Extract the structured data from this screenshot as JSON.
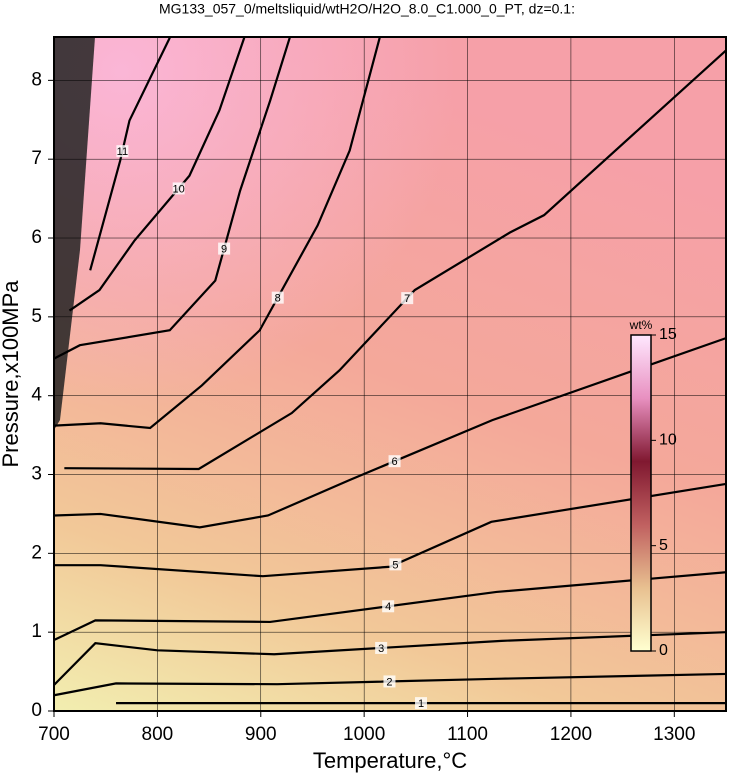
{
  "chart_data": {
    "type": "contour",
    "title": "MG133_057_0/meltsliquid/wtH2O/H2O_8.0_C1.000_0_PT, dz=0.1:",
    "x_label": "Temperature,°C",
    "y_label": "Pressure,x100MPa",
    "xlim": [
      700,
      1350
    ],
    "ylim": [
      0,
      8.55
    ],
    "xticks": [
      700,
      800,
      900,
      1000,
      1100,
      1200,
      1300
    ],
    "yticks": [
      0,
      1,
      2,
      3,
      4,
      5,
      6,
      7,
      8
    ],
    "grid": true,
    "line_color": "#000000",
    "contours": [
      {
        "level": 1,
        "x": [
          760,
          900,
          1100,
          1350
        ],
        "y": [
          0.1,
          0.1,
          0.1,
          0.1
        ]
      },
      {
        "level": 2,
        "x": [
          700,
          760,
          916,
          1133,
          1350
        ],
        "y": [
          0.2,
          0.35,
          0.34,
          0.41,
          0.47
        ]
      },
      {
        "level": 3,
        "x": [
          700,
          740,
          800,
          913,
          1133,
          1350
        ],
        "y": [
          0.33,
          0.86,
          0.77,
          0.72,
          0.89,
          1.0
        ]
      },
      {
        "level": 4,
        "x": [
          700,
          740,
          909,
          1128,
          1350
        ],
        "y": [
          0.9,
          1.15,
          1.13,
          1.51,
          1.76
        ]
      },
      {
        "level": 5,
        "x": [
          700,
          745,
          902,
          1025,
          1123,
          1350
        ],
        "y": [
          1.85,
          1.85,
          1.71,
          1.83,
          2.4,
          2.88
        ]
      },
      {
        "level": 6,
        "x": [
          700,
          745,
          841,
          907,
          986,
          1124,
          1350
        ],
        "y": [
          2.48,
          2.5,
          2.33,
          2.48,
          2.93,
          3.69,
          4.73
        ]
      },
      {
        "level": 7,
        "x": [
          710,
          840,
          930,
          976,
          1049,
          1141,
          1174,
          1350
        ],
        "y": [
          3.08,
          3.07,
          3.78,
          4.32,
          5.34,
          6.07,
          6.29,
          8.38
        ]
      },
      {
        "level": 8,
        "x": [
          700,
          745,
          793,
          843,
          899,
          955,
          986,
          1015
        ],
        "y": [
          3.62,
          3.65,
          3.59,
          4.13,
          4.83,
          6.16,
          7.11,
          8.54
        ]
      },
      {
        "level": 9,
        "x": [
          700,
          725,
          812,
          856,
          880,
          909,
          928
        ],
        "y": [
          4.47,
          4.64,
          4.83,
          5.46,
          6.6,
          7.74,
          8.54
        ]
      },
      {
        "level": 10,
        "x": [
          715,
          744,
          778,
          831,
          860,
          884
        ],
        "y": [
          5.08,
          5.34,
          5.97,
          6.79,
          7.62,
          8.54
        ]
      },
      {
        "level": 11,
        "x": [
          735,
          764,
          773,
          812
        ],
        "y": [
          5.59,
          6.98,
          7.49,
          8.54
        ]
      }
    ],
    "colorbar": {
      "label": "wt%",
      "lim": [
        0,
        15
      ],
      "ticks": [
        0,
        5,
        10,
        15
      ],
      "colors": [
        "#ffffd0",
        "#e8c090",
        "#c06060",
        "#801830",
        "#e890c0",
        "#ffe8ff"
      ]
    }
  }
}
